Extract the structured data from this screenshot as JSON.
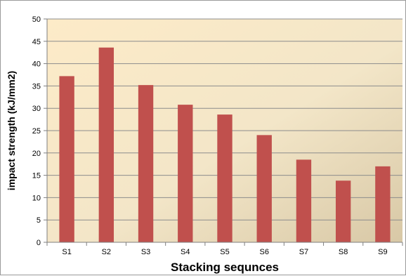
{
  "chart_data": {
    "type": "bar",
    "title": "",
    "xlabel": "Stacking sequnces",
    "ylabel": "impact strength (kJ/mm2)",
    "categories": [
      "S1",
      "S2",
      "S3",
      "S4",
      "S5",
      "S6",
      "S7",
      "S8",
      "S9"
    ],
    "values": [
      37.2,
      43.6,
      35.2,
      30.8,
      28.6,
      24.0,
      18.5,
      13.8,
      17.0
    ],
    "ylim": [
      0,
      50
    ],
    "yticks": [
      0,
      5,
      10,
      15,
      20,
      25,
      30,
      35,
      40,
      45,
      50
    ],
    "grid": true,
    "legend": "none",
    "colors": {
      "bar": "#c0504d",
      "plot_bg_start": "#fdebc8",
      "plot_bg_end": "#d8c8a6",
      "grid": "#8c8c8c"
    }
  }
}
